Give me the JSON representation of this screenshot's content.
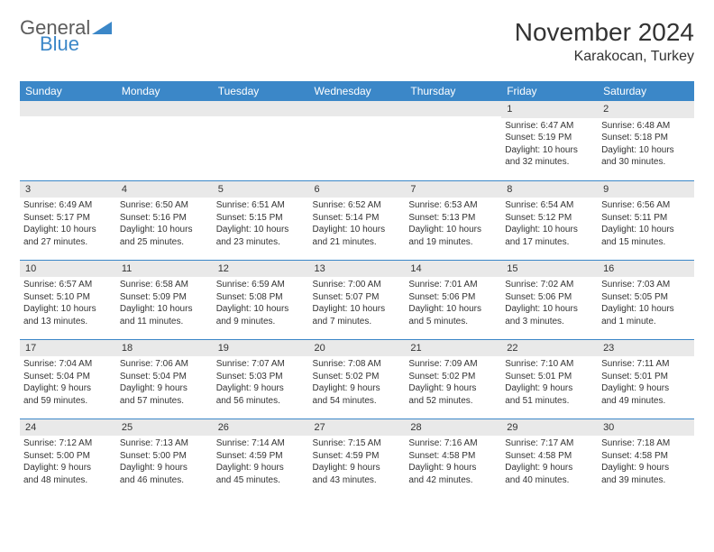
{
  "brand": {
    "general": "General",
    "blue": "Blue"
  },
  "header": {
    "title": "November 2024",
    "location": "Karakocan, Turkey"
  },
  "colors": {
    "accent": "#3b87c8",
    "bar": "#e9e9e9",
    "text": "#333333",
    "logo_gray": "#5c5c5c"
  },
  "dow": [
    "Sunday",
    "Monday",
    "Tuesday",
    "Wednesday",
    "Thursday",
    "Friday",
    "Saturday"
  ],
  "weeks": [
    [
      {
        "n": "",
        "sr": "",
        "ss": "",
        "d1": "",
        "d2": ""
      },
      {
        "n": "",
        "sr": "",
        "ss": "",
        "d1": "",
        "d2": ""
      },
      {
        "n": "",
        "sr": "",
        "ss": "",
        "d1": "",
        "d2": ""
      },
      {
        "n": "",
        "sr": "",
        "ss": "",
        "d1": "",
        "d2": ""
      },
      {
        "n": "",
        "sr": "",
        "ss": "",
        "d1": "",
        "d2": ""
      },
      {
        "n": "1",
        "sr": "Sunrise: 6:47 AM",
        "ss": "Sunset: 5:19 PM",
        "d1": "Daylight: 10 hours",
        "d2": "and 32 minutes."
      },
      {
        "n": "2",
        "sr": "Sunrise: 6:48 AM",
        "ss": "Sunset: 5:18 PM",
        "d1": "Daylight: 10 hours",
        "d2": "and 30 minutes."
      }
    ],
    [
      {
        "n": "3",
        "sr": "Sunrise: 6:49 AM",
        "ss": "Sunset: 5:17 PM",
        "d1": "Daylight: 10 hours",
        "d2": "and 27 minutes."
      },
      {
        "n": "4",
        "sr": "Sunrise: 6:50 AM",
        "ss": "Sunset: 5:16 PM",
        "d1": "Daylight: 10 hours",
        "d2": "and 25 minutes."
      },
      {
        "n": "5",
        "sr": "Sunrise: 6:51 AM",
        "ss": "Sunset: 5:15 PM",
        "d1": "Daylight: 10 hours",
        "d2": "and 23 minutes."
      },
      {
        "n": "6",
        "sr": "Sunrise: 6:52 AM",
        "ss": "Sunset: 5:14 PM",
        "d1": "Daylight: 10 hours",
        "d2": "and 21 minutes."
      },
      {
        "n": "7",
        "sr": "Sunrise: 6:53 AM",
        "ss": "Sunset: 5:13 PM",
        "d1": "Daylight: 10 hours",
        "d2": "and 19 minutes."
      },
      {
        "n": "8",
        "sr": "Sunrise: 6:54 AM",
        "ss": "Sunset: 5:12 PM",
        "d1": "Daylight: 10 hours",
        "d2": "and 17 minutes."
      },
      {
        "n": "9",
        "sr": "Sunrise: 6:56 AM",
        "ss": "Sunset: 5:11 PM",
        "d1": "Daylight: 10 hours",
        "d2": "and 15 minutes."
      }
    ],
    [
      {
        "n": "10",
        "sr": "Sunrise: 6:57 AM",
        "ss": "Sunset: 5:10 PM",
        "d1": "Daylight: 10 hours",
        "d2": "and 13 minutes."
      },
      {
        "n": "11",
        "sr": "Sunrise: 6:58 AM",
        "ss": "Sunset: 5:09 PM",
        "d1": "Daylight: 10 hours",
        "d2": "and 11 minutes."
      },
      {
        "n": "12",
        "sr": "Sunrise: 6:59 AM",
        "ss": "Sunset: 5:08 PM",
        "d1": "Daylight: 10 hours",
        "d2": "and 9 minutes."
      },
      {
        "n": "13",
        "sr": "Sunrise: 7:00 AM",
        "ss": "Sunset: 5:07 PM",
        "d1": "Daylight: 10 hours",
        "d2": "and 7 minutes."
      },
      {
        "n": "14",
        "sr": "Sunrise: 7:01 AM",
        "ss": "Sunset: 5:06 PM",
        "d1": "Daylight: 10 hours",
        "d2": "and 5 minutes."
      },
      {
        "n": "15",
        "sr": "Sunrise: 7:02 AM",
        "ss": "Sunset: 5:06 PM",
        "d1": "Daylight: 10 hours",
        "d2": "and 3 minutes."
      },
      {
        "n": "16",
        "sr": "Sunrise: 7:03 AM",
        "ss": "Sunset: 5:05 PM",
        "d1": "Daylight: 10 hours",
        "d2": "and 1 minute."
      }
    ],
    [
      {
        "n": "17",
        "sr": "Sunrise: 7:04 AM",
        "ss": "Sunset: 5:04 PM",
        "d1": "Daylight: 9 hours",
        "d2": "and 59 minutes."
      },
      {
        "n": "18",
        "sr": "Sunrise: 7:06 AM",
        "ss": "Sunset: 5:04 PM",
        "d1": "Daylight: 9 hours",
        "d2": "and 57 minutes."
      },
      {
        "n": "19",
        "sr": "Sunrise: 7:07 AM",
        "ss": "Sunset: 5:03 PM",
        "d1": "Daylight: 9 hours",
        "d2": "and 56 minutes."
      },
      {
        "n": "20",
        "sr": "Sunrise: 7:08 AM",
        "ss": "Sunset: 5:02 PM",
        "d1": "Daylight: 9 hours",
        "d2": "and 54 minutes."
      },
      {
        "n": "21",
        "sr": "Sunrise: 7:09 AM",
        "ss": "Sunset: 5:02 PM",
        "d1": "Daylight: 9 hours",
        "d2": "and 52 minutes."
      },
      {
        "n": "22",
        "sr": "Sunrise: 7:10 AM",
        "ss": "Sunset: 5:01 PM",
        "d1": "Daylight: 9 hours",
        "d2": "and 51 minutes."
      },
      {
        "n": "23",
        "sr": "Sunrise: 7:11 AM",
        "ss": "Sunset: 5:01 PM",
        "d1": "Daylight: 9 hours",
        "d2": "and 49 minutes."
      }
    ],
    [
      {
        "n": "24",
        "sr": "Sunrise: 7:12 AM",
        "ss": "Sunset: 5:00 PM",
        "d1": "Daylight: 9 hours",
        "d2": "and 48 minutes."
      },
      {
        "n": "25",
        "sr": "Sunrise: 7:13 AM",
        "ss": "Sunset: 5:00 PM",
        "d1": "Daylight: 9 hours",
        "d2": "and 46 minutes."
      },
      {
        "n": "26",
        "sr": "Sunrise: 7:14 AM",
        "ss": "Sunset: 4:59 PM",
        "d1": "Daylight: 9 hours",
        "d2": "and 45 minutes."
      },
      {
        "n": "27",
        "sr": "Sunrise: 7:15 AM",
        "ss": "Sunset: 4:59 PM",
        "d1": "Daylight: 9 hours",
        "d2": "and 43 minutes."
      },
      {
        "n": "28",
        "sr": "Sunrise: 7:16 AM",
        "ss": "Sunset: 4:58 PM",
        "d1": "Daylight: 9 hours",
        "d2": "and 42 minutes."
      },
      {
        "n": "29",
        "sr": "Sunrise: 7:17 AM",
        "ss": "Sunset: 4:58 PM",
        "d1": "Daylight: 9 hours",
        "d2": "and 40 minutes."
      },
      {
        "n": "30",
        "sr": "Sunrise: 7:18 AM",
        "ss": "Sunset: 4:58 PM",
        "d1": "Daylight: 9 hours",
        "d2": "and 39 minutes."
      }
    ]
  ]
}
